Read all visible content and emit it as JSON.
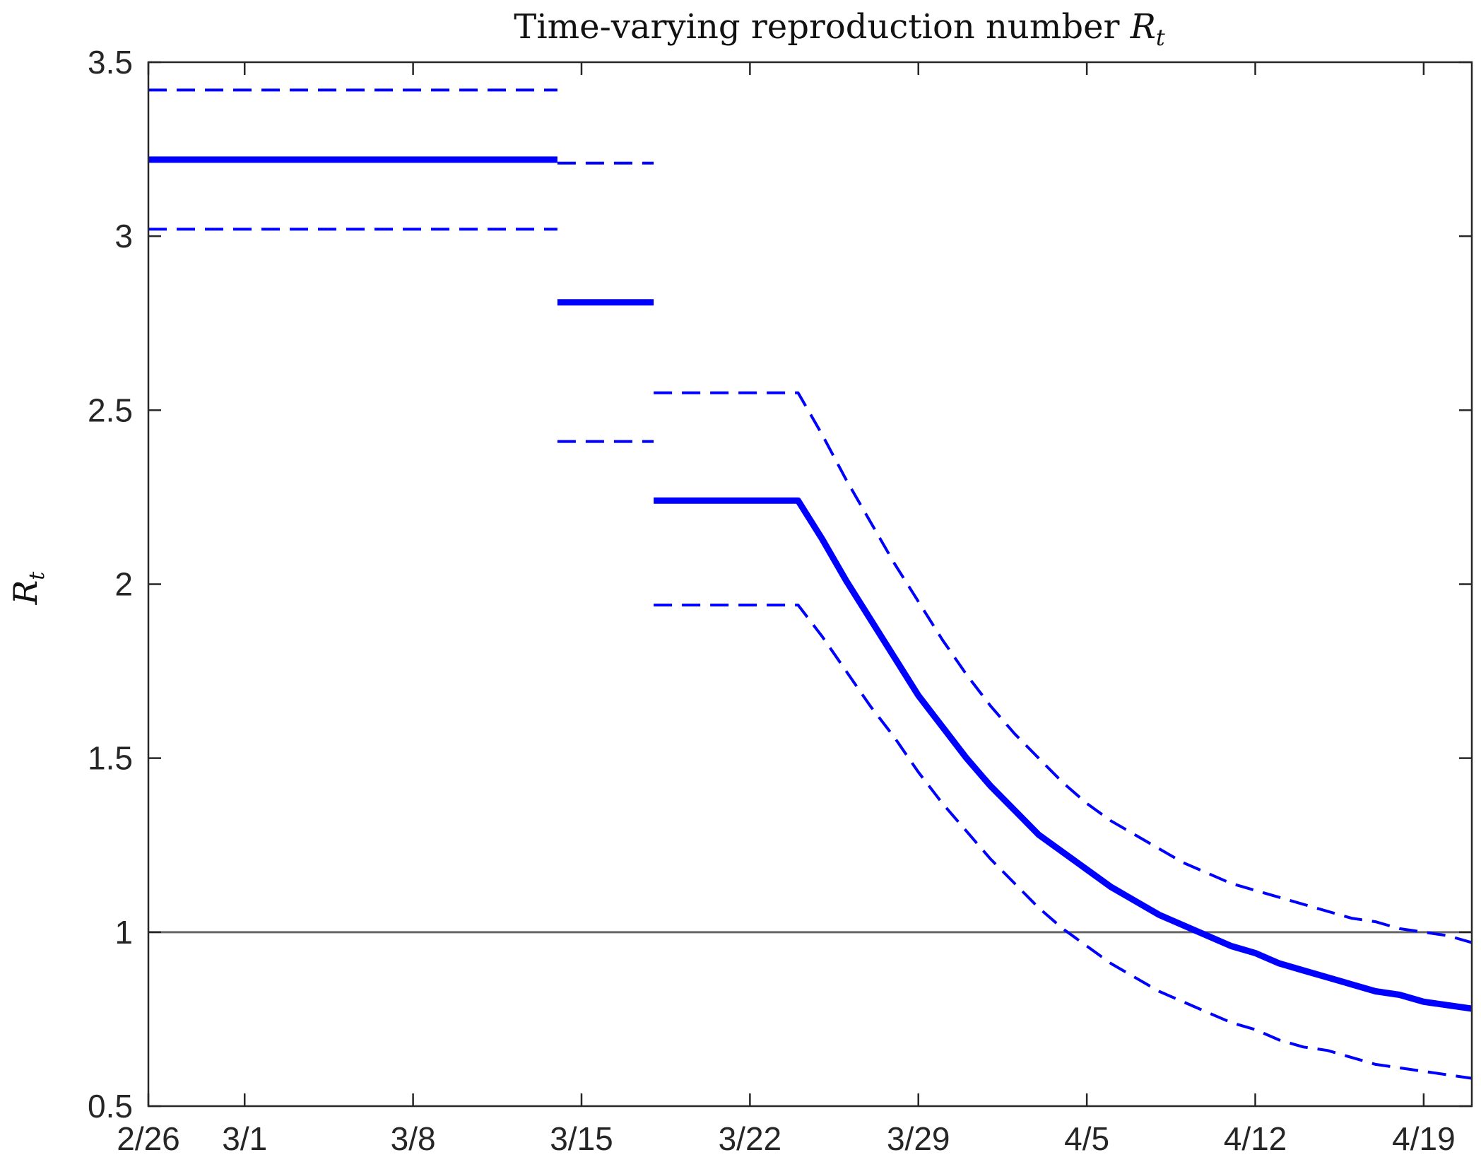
{
  "chart_data": {
    "type": "line",
    "title": "Time-varying reproduction number R_t",
    "title_parts": {
      "text": "Time-varying reproduction number ",
      "symbol": "R",
      "subscript": "t"
    },
    "ylabel": "R_t",
    "ylabel_parts": {
      "symbol": "R",
      "subscript": "t"
    },
    "xlabel": "",
    "xlim": [
      "2/26",
      "4/21"
    ],
    "ylim": [
      0.5,
      3.5
    ],
    "x_ticks": [
      "2/26",
      "3/1",
      "3/8",
      "3/15",
      "3/22",
      "3/29",
      "4/5",
      "4/12",
      "4/19"
    ],
    "y_ticks": [
      "0.5",
      "1",
      "1.5",
      "2",
      "2.5",
      "3",
      "3.5"
    ],
    "grid": false,
    "reference_line": {
      "y": 1,
      "color": "#666666"
    },
    "colors": {
      "series": "#0000ff",
      "axis": "#262626"
    },
    "series": [
      {
        "role": "estimate",
        "style": "solid",
        "segments": [
          [
            [
              "2/26",
              3.22
            ],
            [
              "3/14",
              3.22
            ]
          ],
          [
            [
              "3/14",
              2.81
            ],
            [
              "3/18",
              2.81
            ]
          ],
          [
            [
              "3/18",
              2.24
            ],
            [
              "3/24",
              2.24
            ],
            [
              "3/25",
              2.13
            ],
            [
              "3/26",
              2.01
            ],
            [
              "3/27",
              1.9
            ],
            [
              "3/28",
              1.79
            ],
            [
              "3/29",
              1.68
            ],
            [
              "3/30",
              1.59
            ],
            [
              "3/31",
              1.5
            ],
            [
              "4/1",
              1.42
            ],
            [
              "4/2",
              1.35
            ],
            [
              "4/3",
              1.28
            ],
            [
              "4/4",
              1.23
            ],
            [
              "4/5",
              1.18
            ],
            [
              "4/6",
              1.13
            ],
            [
              "4/7",
              1.09
            ],
            [
              "4/8",
              1.05
            ],
            [
              "4/9",
              1.02
            ],
            [
              "4/10",
              0.99
            ],
            [
              "4/11",
              0.96
            ],
            [
              "4/12",
              0.94
            ],
            [
              "4/13",
              0.91
            ],
            [
              "4/14",
              0.89
            ],
            [
              "4/15",
              0.87
            ],
            [
              "4/16",
              0.85
            ],
            [
              "4/17",
              0.83
            ],
            [
              "4/18",
              0.82
            ],
            [
              "4/19",
              0.8
            ],
            [
              "4/20",
              0.79
            ],
            [
              "4/21",
              0.78
            ]
          ]
        ]
      },
      {
        "role": "upper bound",
        "style": "dashed",
        "segments": [
          [
            [
              "2/26",
              3.42
            ],
            [
              "3/14",
              3.42
            ]
          ],
          [
            [
              "3/14",
              3.21
            ],
            [
              "3/18",
              3.21
            ]
          ],
          [
            [
              "3/18",
              2.55
            ],
            [
              "3/24",
              2.55
            ],
            [
              "3/25",
              2.43
            ],
            [
              "3/26",
              2.3
            ],
            [
              "3/27",
              2.18
            ],
            [
              "3/28",
              2.06
            ],
            [
              "3/29",
              1.95
            ],
            [
              "3/30",
              1.84
            ],
            [
              "3/31",
              1.74
            ],
            [
              "4/1",
              1.65
            ],
            [
              "4/2",
              1.57
            ],
            [
              "4/3",
              1.5
            ],
            [
              "4/4",
              1.43
            ],
            [
              "4/5",
              1.37
            ],
            [
              "4/6",
              1.32
            ],
            [
              "4/7",
              1.28
            ],
            [
              "4/8",
              1.24
            ],
            [
              "4/9",
              1.2
            ],
            [
              "4/10",
              1.17
            ],
            [
              "4/11",
              1.14
            ],
            [
              "4/12",
              1.12
            ],
            [
              "4/13",
              1.1
            ],
            [
              "4/14",
              1.08
            ],
            [
              "4/15",
              1.06
            ],
            [
              "4/16",
              1.04
            ],
            [
              "4/17",
              1.03
            ],
            [
              "4/18",
              1.01
            ],
            [
              "4/19",
              1.0
            ],
            [
              "4/20",
              0.99
            ],
            [
              "4/21",
              0.97
            ]
          ]
        ]
      },
      {
        "role": "lower bound",
        "style": "dashed",
        "segments": [
          [
            [
              "2/26",
              3.02
            ],
            [
              "3/14",
              3.02
            ]
          ],
          [
            [
              "3/14",
              2.41
            ],
            [
              "3/18",
              2.41
            ]
          ],
          [
            [
              "3/18",
              1.94
            ],
            [
              "3/24",
              1.94
            ],
            [
              "3/25",
              1.85
            ],
            [
              "3/26",
              1.75
            ],
            [
              "3/27",
              1.65
            ],
            [
              "3/28",
              1.56
            ],
            [
              "3/29",
              1.46
            ],
            [
              "3/30",
              1.37
            ],
            [
              "3/31",
              1.29
            ],
            [
              "4/1",
              1.21
            ],
            [
              "4/2",
              1.14
            ],
            [
              "4/3",
              1.07
            ],
            [
              "4/4",
              1.01
            ],
            [
              "4/5",
              0.96
            ],
            [
              "4/6",
              0.91
            ],
            [
              "4/7",
              0.87
            ],
            [
              "4/8",
              0.83
            ],
            [
              "4/9",
              0.8
            ],
            [
              "4/10",
              0.77
            ],
            [
              "4/11",
              0.74
            ],
            [
              "4/12",
              0.72
            ],
            [
              "4/13",
              0.69
            ],
            [
              "4/14",
              0.67
            ],
            [
              "4/15",
              0.66
            ],
            [
              "4/16",
              0.64
            ],
            [
              "4/17",
              0.62
            ],
            [
              "4/18",
              0.61
            ],
            [
              "4/19",
              0.6
            ],
            [
              "4/20",
              0.59
            ],
            [
              "4/21",
              0.58
            ]
          ]
        ]
      }
    ]
  }
}
